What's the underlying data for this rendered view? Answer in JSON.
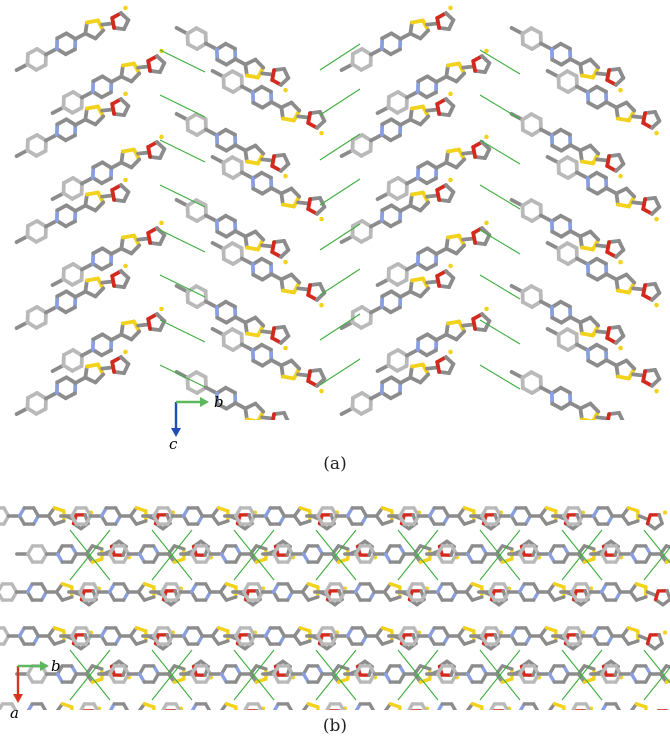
{
  "panel_a": {
    "caption": "(a)",
    "axes": {
      "horizontal_label": "b",
      "vertical_label": "c"
    }
  },
  "panel_b": {
    "caption": "(b)",
    "axes": {
      "horizontal_label": "b",
      "vertical_label": "a"
    }
  },
  "colors": {
    "carbon": "#8c8c8c",
    "carbon_light": "#b9b9b9",
    "nitrogen": "#8a9fe0",
    "sulfur": "#f3d21b",
    "oxygen": "#d42a1e",
    "hbond": "#3fae3f",
    "axis_horizontal": "#5cb85c",
    "axis_vertical_a": "#1f4fb5",
    "axis_vertical_b": "#d9341f"
  }
}
